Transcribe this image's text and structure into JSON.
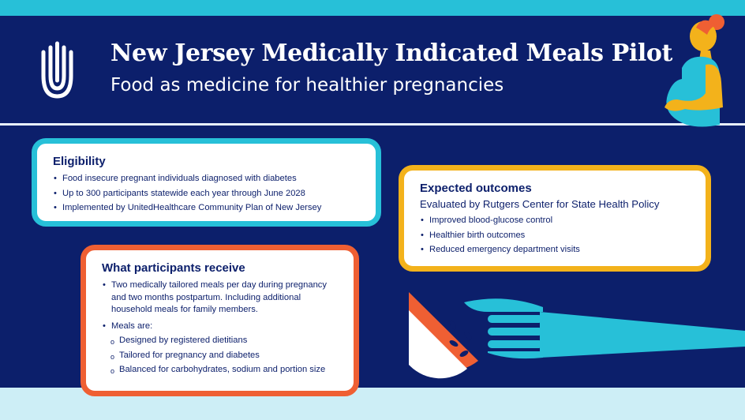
{
  "header": {
    "title": "New Jersey Medically Indicated Meals Pilot",
    "subtitle": "Food as medicine for healthier pregnancies"
  },
  "eligibility": {
    "heading": "Eligibility",
    "items": [
      "Food insecure pregnant individuals diagnosed with diabetes",
      "Up to 300 participants statewide each year through June 2028",
      "Implemented by UnitedHealthcare Community Plan of New Jersey"
    ]
  },
  "outcomes": {
    "heading": "Expected outcomes",
    "subheading": "Evaluated by Rutgers Center for State Health Policy",
    "items": [
      "Improved blood-glucose control",
      "Healthier birth outcomes",
      "Reduced emergency department visits"
    ]
  },
  "receive": {
    "heading": "What participants receive",
    "item1": "Two medically tailored meals per day during pregnancy and two months postpartum. Including additional household meals for family members.",
    "item2": "Meals are:",
    "subitems": [
      "Designed by registered dietitians",
      "Tailored for pregnancy and diabetes",
      "Balanced for carbohydrates, sodium and portion size"
    ]
  },
  "icons": {
    "logo": "uhc-logo",
    "woman": "pregnant-woman-illustration",
    "fork": "fork-with-fruit-illustration"
  },
  "colors": {
    "background": "#0c1f6b",
    "teal": "#27c0d8",
    "gold": "#f3b21b",
    "orange": "#ef5f33",
    "light_band": "#cdeef6"
  }
}
